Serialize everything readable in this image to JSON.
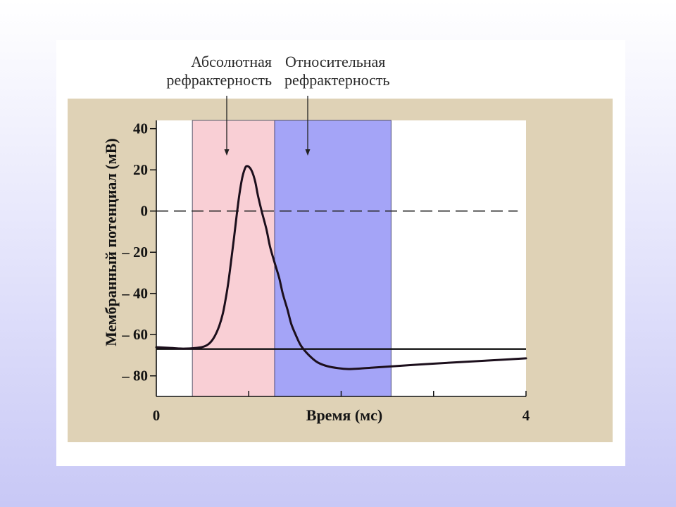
{
  "chart_data": {
    "type": "line",
    "xlabel": "Время (мс)",
    "ylabel": "Мембранный потенциал (мВ)",
    "xlim": [
      0,
      4
    ],
    "ylim": [
      -90,
      44
    ],
    "grid": false,
    "legend": false,
    "x_tick_marks": [
      1,
      2,
      3,
      4
    ],
    "x_tick_labels": [
      {
        "value": 0,
        "label": "0"
      },
      {
        "value": 4,
        "label": "4"
      }
    ],
    "y_ticks": [
      {
        "value": 40,
        "label": "40"
      },
      {
        "value": 20,
        "label": "20"
      },
      {
        "value": 0,
        "label": "0"
      },
      {
        "value": -20,
        "label": "– 20"
      },
      {
        "value": -40,
        "label": "– 40"
      },
      {
        "value": -60,
        "label": "– 60"
      },
      {
        "value": -80,
        "label": "– 80"
      }
    ],
    "series": [
      {
        "color": "#1c0f1c",
        "points": [
          [
            0,
            -66.1
          ],
          [
            0.14,
            -66.4
          ],
          [
            0.29,
            -66.8
          ],
          [
            0.44,
            -66.4
          ],
          [
            0.52,
            -65.7
          ],
          [
            0.58,
            -64.0
          ],
          [
            0.63,
            -60.9
          ],
          [
            0.68,
            -55.8
          ],
          [
            0.72,
            -49.7
          ],
          [
            0.75,
            -42.8
          ],
          [
            0.78,
            -34.3
          ],
          [
            0.81,
            -24.0
          ],
          [
            0.84,
            -13.1
          ],
          [
            0.87,
            -1.8
          ],
          [
            0.9,
            8.4
          ],
          [
            0.93,
            16.3
          ],
          [
            0.96,
            20.8
          ],
          [
            0.98,
            21.8
          ],
          [
            1.01,
            21.1
          ],
          [
            1.04,
            18.7
          ],
          [
            1.07,
            14.3
          ],
          [
            1.1,
            7.4
          ],
          [
            1.14,
            -0.1
          ],
          [
            1.19,
            -8.6
          ],
          [
            1.23,
            -17.2
          ],
          [
            1.28,
            -25.1
          ],
          [
            1.33,
            -32.6
          ],
          [
            1.37,
            -40.4
          ],
          [
            1.42,
            -48.0
          ],
          [
            1.46,
            -54.8
          ],
          [
            1.51,
            -60.3
          ],
          [
            1.56,
            -65.0
          ],
          [
            1.62,
            -68.5
          ],
          [
            1.68,
            -71.2
          ],
          [
            1.75,
            -73.6
          ],
          [
            1.85,
            -75.3
          ],
          [
            1.97,
            -76.3
          ],
          [
            2.08,
            -76.7
          ],
          [
            2.19,
            -76.5
          ],
          [
            2.35,
            -76.0
          ],
          [
            2.58,
            -75.3
          ],
          [
            2.88,
            -74.4
          ],
          [
            3.18,
            -73.6
          ],
          [
            3.57,
            -72.6
          ],
          [
            4.0,
            -71.5
          ]
        ]
      }
    ],
    "reference_lines": [
      {
        "y": -67,
        "x_range": [
          0,
          4
        ],
        "dashed": false,
        "color": "#111111"
      },
      {
        "y": 0,
        "x_range": [
          0,
          3.91
        ],
        "dashed": true,
        "color": "#262626"
      }
    ],
    "bands": [
      {
        "x_range": [
          0.39,
          1.28
        ],
        "color": "#f9cfd5",
        "label_lines": [
          "Абсолютная",
          "рефрактерность"
        ]
      },
      {
        "x_range": [
          1.28,
          2.54
        ],
        "color": "#a4a4f7",
        "label_lines": [
          "Относительная",
          "рефрактерность"
        ]
      }
    ]
  }
}
